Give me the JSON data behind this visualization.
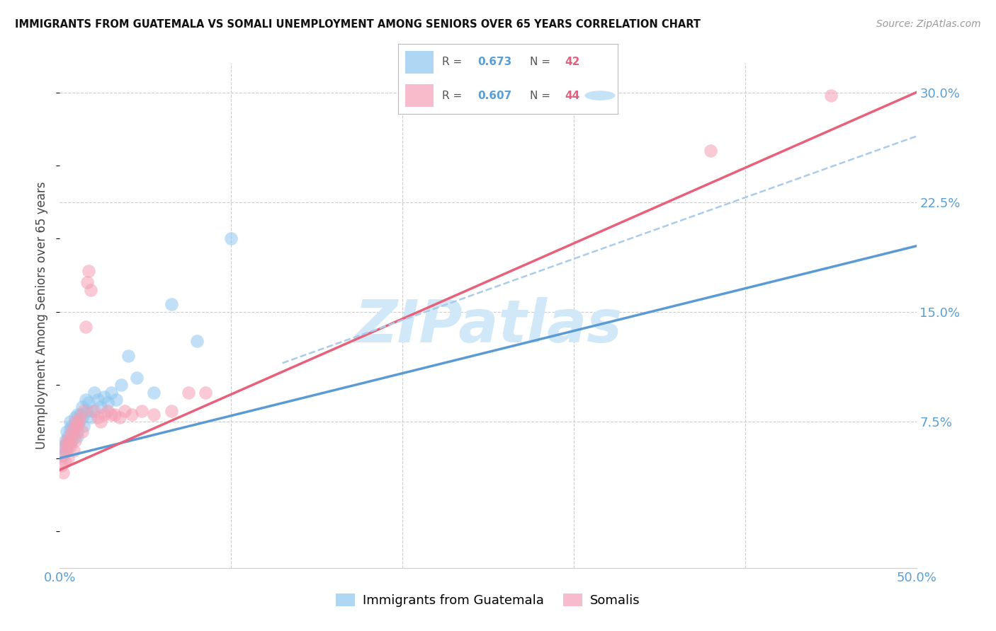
{
  "title": "IMMIGRANTS FROM GUATEMALA VS SOMALI UNEMPLOYMENT AMONG SENIORS OVER 65 YEARS CORRELATION CHART",
  "source": "Source: ZipAtlas.com",
  "ylabel": "Unemployment Among Seniors over 65 years",
  "xlim": [
    0.0,
    0.5
  ],
  "ylim": [
    -0.025,
    0.32
  ],
  "ytick_vals_right": [
    0.0,
    0.075,
    0.15,
    0.225,
    0.3
  ],
  "ytick_labels_right": [
    "",
    "7.5%",
    "15.0%",
    "22.5%",
    "30.0%"
  ],
  "color_blue": "#8ec6f0",
  "color_pink": "#f5a0b5",
  "color_blue_line": "#5b9bd5",
  "color_pink_line": "#e8607a",
  "color_dashed": "#aacce8",
  "color_text_blue": "#5a9fd4",
  "color_text_pink": "#e06080",
  "color_grid": "#cccccc",
  "watermark_text": "ZIPatlas",
  "watermark_color": "#d0e8f8",
  "guatemala_x": [
    0.001,
    0.002,
    0.003,
    0.003,
    0.004,
    0.004,
    0.005,
    0.005,
    0.006,
    0.006,
    0.007,
    0.007,
    0.008,
    0.008,
    0.009,
    0.009,
    0.01,
    0.01,
    0.011,
    0.012,
    0.013,
    0.013,
    0.014,
    0.015,
    0.016,
    0.017,
    0.018,
    0.019,
    0.02,
    0.022,
    0.024,
    0.026,
    0.028,
    0.03,
    0.033,
    0.036,
    0.04,
    0.045,
    0.055,
    0.065,
    0.08,
    0.1
  ],
  "guatemala_y": [
    0.052,
    0.058,
    0.055,
    0.062,
    0.06,
    0.068,
    0.058,
    0.065,
    0.07,
    0.075,
    0.062,
    0.072,
    0.068,
    0.065,
    0.072,
    0.078,
    0.08,
    0.065,
    0.074,
    0.08,
    0.085,
    0.078,
    0.072,
    0.09,
    0.082,
    0.088,
    0.078,
    0.082,
    0.095,
    0.09,
    0.085,
    0.092,
    0.088,
    0.095,
    0.09,
    0.1,
    0.12,
    0.105,
    0.095,
    0.155,
    0.13,
    0.2
  ],
  "somali_x": [
    0.001,
    0.002,
    0.002,
    0.003,
    0.003,
    0.004,
    0.004,
    0.005,
    0.005,
    0.006,
    0.006,
    0.007,
    0.007,
    0.008,
    0.008,
    0.009,
    0.009,
    0.01,
    0.01,
    0.011,
    0.012,
    0.013,
    0.014,
    0.015,
    0.016,
    0.017,
    0.018,
    0.02,
    0.022,
    0.024,
    0.026,
    0.028,
    0.03,
    0.032,
    0.035,
    0.038,
    0.042,
    0.048,
    0.055,
    0.065,
    0.075,
    0.085,
    0.38,
    0.45
  ],
  "somali_y": [
    0.045,
    0.04,
    0.052,
    0.048,
    0.058,
    0.055,
    0.062,
    0.05,
    0.06,
    0.065,
    0.058,
    0.062,
    0.068,
    0.055,
    0.07,
    0.062,
    0.075,
    0.068,
    0.072,
    0.075,
    0.078,
    0.068,
    0.082,
    0.14,
    0.17,
    0.178,
    0.165,
    0.082,
    0.078,
    0.075,
    0.08,
    0.082,
    0.08,
    0.08,
    0.078,
    0.082,
    0.08,
    0.082,
    0.08,
    0.082,
    0.095,
    0.095,
    0.26,
    0.298
  ],
  "blue_line_x": [
    0.0,
    0.5
  ],
  "blue_line_y": [
    0.05,
    0.195
  ],
  "pink_line_x": [
    0.0,
    0.5
  ],
  "pink_line_y": [
    0.042,
    0.3
  ],
  "dashed_line_x": [
    0.13,
    0.5
  ],
  "dashed_line_y": [
    0.115,
    0.27
  ]
}
